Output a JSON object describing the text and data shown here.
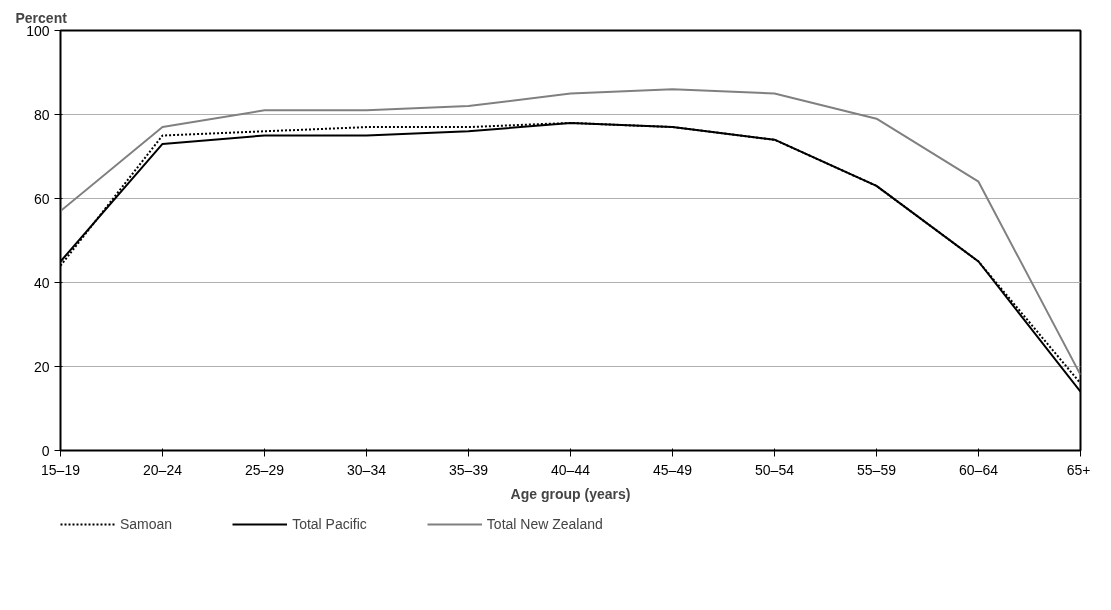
{
  "chart_data": {
    "type": "line",
    "ylabel": "Percent",
    "xlabel": "Age group (years)",
    "categories": [
      "15–19",
      "20–24",
      "25–29",
      "30–34",
      "35–39",
      "40–44",
      "45–49",
      "50–54",
      "55–59",
      "60–64",
      "65+"
    ],
    "series": [
      {
        "name": "Samoan",
        "color": "#000000",
        "line_style": "dotted",
        "values": [
          44,
          75,
          76,
          77,
          77,
          78,
          77,
          74,
          63,
          45,
          16
        ]
      },
      {
        "name": "Total Pacific",
        "color": "#000000",
        "line_style": "solid",
        "values": [
          45,
          73,
          75,
          75,
          76,
          78,
          77,
          74,
          63,
          45,
          14
        ]
      },
      {
        "name": "Total New Zealand",
        "color": "#808080",
        "line_style": "solid",
        "values": [
          57,
          77,
          81,
          81,
          82,
          85,
          86,
          85,
          79,
          64,
          18
        ]
      }
    ],
    "ylim": [
      0,
      100
    ],
    "yticks": [
      0,
      20,
      40,
      60,
      80,
      100
    ],
    "grid": "y",
    "legend": "bottom",
    "marker": "none"
  }
}
